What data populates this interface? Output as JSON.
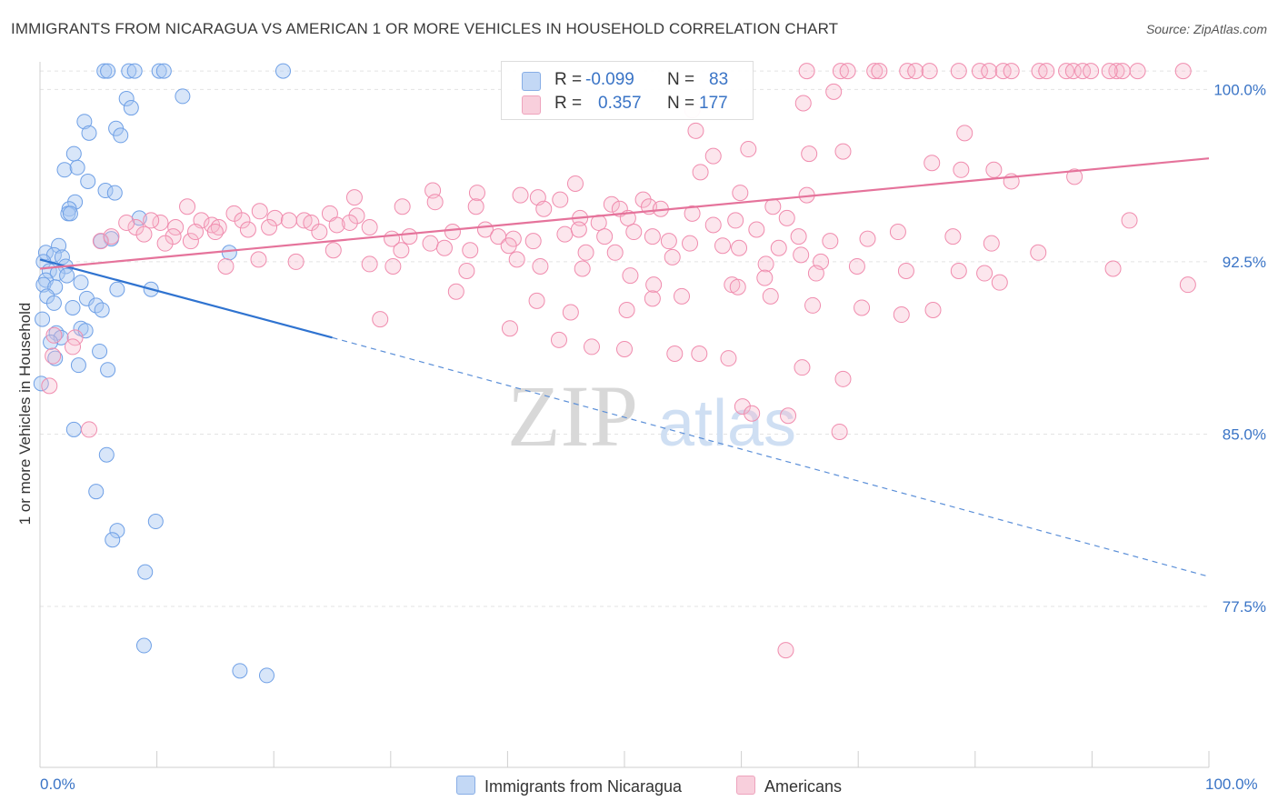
{
  "header": {
    "title": "IMMIGRANTS FROM NICARAGUA VS AMERICAN 1 OR MORE VEHICLES IN HOUSEHOLD CORRELATION CHART",
    "source": "Source: ZipAtlas.com"
  },
  "watermark": {
    "zip": "ZIP",
    "atlas": "atlas"
  },
  "legend": {
    "rows": [
      {
        "r_label": "R =",
        "r_value": "-0.099",
        "n_label": "N =",
        "n_value": "83",
        "color": "#a9c8f2"
      },
      {
        "r_label": "R =",
        "r_value": "0.357",
        "n_label": "N =",
        "n_value": "177",
        "color": "#f5b8cc"
      }
    ]
  },
  "bottom_legend": {
    "items": [
      {
        "label": "Immigrants from Nicaragua",
        "color": "#a9c8f2"
      },
      {
        "label": "Americans",
        "color": "#f5b8cc"
      }
    ]
  },
  "chart_data": {
    "type": "scatter",
    "title": "IMMIGRANTS FROM NICARAGUA VS AMERICAN 1 OR MORE VEHICLES IN HOUSEHOLD CORRELATION CHART",
    "xlabel": "",
    "ylabel": "1 or more Vehicles in Household",
    "xlim": [
      0,
      100
    ],
    "ylim": [
      70.5,
      101.2
    ],
    "x_tick_labels": [
      "0.0%",
      "100.0%"
    ],
    "y_ticks": [
      77.5,
      85.0,
      92.5,
      100.0
    ],
    "y_tick_labels": [
      "77.5%",
      "85.0%",
      "92.5%",
      "100.0%"
    ],
    "grid": true,
    "legend_position": "top-center",
    "series": [
      {
        "name": "Immigrants from Nicaragua",
        "color": "#6fa0e6",
        "trend": {
          "x": [
            0,
            25
          ],
          "y": [
            92.6,
            89.2
          ],
          "dashed_to": [
            100,
            78.8
          ]
        },
        "points": [
          [
            5.5,
            100.8
          ],
          [
            5.8,
            100.8
          ],
          [
            7.6,
            100.8
          ],
          [
            8.1,
            100.8
          ],
          [
            10.2,
            100.8
          ],
          [
            10.6,
            100.8
          ],
          [
            20.8,
            100.8
          ],
          [
            12.2,
            99.7
          ],
          [
            7.4,
            99.6
          ],
          [
            7.8,
            99.2
          ],
          [
            3.8,
            98.6
          ],
          [
            6.5,
            98.3
          ],
          [
            4.2,
            98.1
          ],
          [
            6.9,
            98.0
          ],
          [
            2.9,
            97.2
          ],
          [
            2.1,
            96.5
          ],
          [
            3.2,
            96.6
          ],
          [
            4.1,
            96.0
          ],
          [
            5.6,
            95.6
          ],
          [
            6.4,
            95.5
          ],
          [
            3.0,
            95.1
          ],
          [
            2.5,
            94.8
          ],
          [
            2.4,
            94.6
          ],
          [
            2.6,
            94.6
          ],
          [
            8.5,
            94.4
          ],
          [
            6.1,
            93.5
          ],
          [
            5.2,
            93.4
          ],
          [
            1.6,
            93.2
          ],
          [
            0.5,
            92.9
          ],
          [
            1.2,
            92.8
          ],
          [
            1.9,
            92.7
          ],
          [
            16.2,
            92.9
          ],
          [
            0.3,
            92.5
          ],
          [
            2.2,
            92.3
          ],
          [
            0.8,
            92.1
          ],
          [
            1.5,
            92.0
          ],
          [
            2.3,
            91.9
          ],
          [
            0.5,
            91.7
          ],
          [
            0.3,
            91.5
          ],
          [
            3.5,
            91.6
          ],
          [
            1.3,
            91.4
          ],
          [
            6.6,
            91.3
          ],
          [
            9.5,
            91.3
          ],
          [
            0.6,
            91.0
          ],
          [
            4.0,
            90.9
          ],
          [
            1.2,
            90.7
          ],
          [
            4.8,
            90.6
          ],
          [
            5.3,
            90.4
          ],
          [
            2.8,
            90.5
          ],
          [
            0.2,
            90.0
          ],
          [
            3.5,
            89.6
          ],
          [
            3.9,
            89.5
          ],
          [
            1.4,
            89.4
          ],
          [
            1.8,
            89.2
          ],
          [
            0.9,
            89.0
          ],
          [
            5.1,
            88.6
          ],
          [
            1.3,
            88.3
          ],
          [
            3.3,
            88.0
          ],
          [
            5.8,
            87.8
          ],
          [
            0.1,
            87.2
          ],
          [
            2.9,
            85.2
          ],
          [
            5.7,
            84.1
          ],
          [
            4.8,
            82.5
          ],
          [
            9.9,
            81.2
          ],
          [
            6.6,
            80.8
          ],
          [
            6.2,
            80.4
          ],
          [
            9.0,
            79.0
          ],
          [
            8.9,
            75.8
          ],
          [
            17.1,
            74.7
          ],
          [
            19.4,
            74.5
          ]
        ]
      },
      {
        "name": "Americans",
        "color": "#f08cae",
        "trend": {
          "x": [
            0,
            100
          ],
          "y": [
            92.2,
            97.0
          ]
        },
        "points": [
          [
            65.6,
            100.8
          ],
          [
            68.5,
            100.8
          ],
          [
            69.1,
            100.8
          ],
          [
            71.4,
            100.8
          ],
          [
            71.8,
            100.8
          ],
          [
            74.2,
            100.8
          ],
          [
            74.9,
            100.8
          ],
          [
            76.1,
            100.8
          ],
          [
            78.6,
            100.8
          ],
          [
            80.4,
            100.8
          ],
          [
            81.2,
            100.8
          ],
          [
            82.4,
            100.8
          ],
          [
            83.1,
            100.8
          ],
          [
            85.5,
            100.8
          ],
          [
            86.1,
            100.8
          ],
          [
            87.8,
            100.8
          ],
          [
            88.4,
            100.8
          ],
          [
            89.2,
            100.8
          ],
          [
            89.9,
            100.8
          ],
          [
            92.1,
            100.8
          ],
          [
            92.6,
            100.8
          ],
          [
            93.9,
            100.8
          ],
          [
            97.8,
            100.8
          ],
          [
            91.5,
            100.8
          ],
          [
            67.9,
            99.9
          ],
          [
            55.8,
            99.1
          ],
          [
            65.3,
            99.4
          ],
          [
            56.1,
            98.2
          ],
          [
            79.1,
            98.1
          ],
          [
            60.6,
            97.4
          ],
          [
            57.6,
            97.1
          ],
          [
            65.8,
            97.2
          ],
          [
            68.7,
            97.3
          ],
          [
            76.3,
            96.8
          ],
          [
            78.8,
            96.5
          ],
          [
            81.6,
            96.5
          ],
          [
            56.5,
            96.4
          ],
          [
            88.5,
            96.2
          ],
          [
            83.1,
            96.0
          ],
          [
            45.8,
            95.9
          ],
          [
            33.6,
            95.6
          ],
          [
            37.4,
            95.5
          ],
          [
            26.9,
            95.3
          ],
          [
            41.1,
            95.4
          ],
          [
            44.5,
            95.2
          ],
          [
            51.6,
            95.2
          ],
          [
            48.9,
            95.0
          ],
          [
            52.1,
            94.9
          ],
          [
            59.9,
            95.5
          ],
          [
            65.6,
            95.4
          ],
          [
            49.6,
            94.8
          ],
          [
            53.1,
            94.8
          ],
          [
            55.8,
            94.6
          ],
          [
            62.7,
            94.9
          ],
          [
            59.5,
            94.3
          ],
          [
            63.9,
            94.4
          ],
          [
            27.1,
            94.5
          ],
          [
            26.5,
            94.2
          ],
          [
            22.6,
            94.3
          ],
          [
            24.8,
            94.6
          ],
          [
            31.0,
            94.9
          ],
          [
            33.8,
            95.1
          ],
          [
            37.3,
            94.9
          ],
          [
            42.6,
            95.3
          ],
          [
            43.1,
            94.8
          ],
          [
            46.2,
            94.4
          ],
          [
            47.8,
            94.2
          ],
          [
            50.3,
            94.4
          ],
          [
            18.8,
            94.7
          ],
          [
            20.1,
            94.4
          ],
          [
            13.8,
            94.3
          ],
          [
            14.7,
            94.1
          ],
          [
            15.3,
            94.0
          ],
          [
            16.6,
            94.6
          ],
          [
            17.3,
            94.3
          ],
          [
            21.3,
            94.3
          ],
          [
            23.2,
            94.2
          ],
          [
            11.6,
            94.0
          ],
          [
            12.6,
            94.9
          ],
          [
            10.3,
            94.2
          ],
          [
            9.5,
            94.3
          ],
          [
            8.2,
            94.0
          ],
          [
            7.4,
            94.2
          ],
          [
            8.9,
            93.7
          ],
          [
            11.4,
            93.6
          ],
          [
            10.7,
            93.3
          ],
          [
            12.9,
            93.4
          ],
          [
            13.3,
            93.8
          ],
          [
            15.0,
            93.8
          ],
          [
            17.8,
            93.9
          ],
          [
            19.6,
            94.0
          ],
          [
            23.9,
            93.8
          ],
          [
            25.4,
            94.1
          ],
          [
            28.2,
            94.0
          ],
          [
            30.1,
            93.5
          ],
          [
            31.6,
            93.6
          ],
          [
            33.4,
            93.3
          ],
          [
            35.3,
            93.8
          ],
          [
            38.1,
            93.9
          ],
          [
            39.2,
            93.6
          ],
          [
            40.5,
            93.5
          ],
          [
            42.2,
            93.4
          ],
          [
            44.9,
            93.7
          ],
          [
            46.1,
            93.9
          ],
          [
            48.3,
            93.6
          ],
          [
            50.8,
            93.8
          ],
          [
            52.4,
            93.6
          ],
          [
            53.8,
            93.4
          ],
          [
            55.6,
            93.3
          ],
          [
            57.6,
            94.1
          ],
          [
            59.8,
            93.1
          ],
          [
            61.3,
            93.9
          ],
          [
            64.9,
            93.6
          ],
          [
            67.6,
            93.4
          ],
          [
            70.8,
            93.5
          ],
          [
            73.4,
            93.8
          ],
          [
            78.1,
            93.6
          ],
          [
            81.4,
            93.3
          ],
          [
            85.4,
            92.9
          ],
          [
            93.2,
            94.3
          ],
          [
            63.2,
            93.1
          ],
          [
            65.1,
            92.8
          ],
          [
            66.8,
            92.5
          ],
          [
            62.1,
            92.4
          ],
          [
            58.4,
            93.2
          ],
          [
            54.1,
            92.7
          ],
          [
            49.2,
            92.9
          ],
          [
            46.7,
            92.9
          ],
          [
            40.1,
            93.2
          ],
          [
            36.8,
            93.0
          ],
          [
            34.6,
            93.1
          ],
          [
            30.9,
            93.0
          ],
          [
            28.2,
            92.4
          ],
          [
            25.1,
            93.0
          ],
          [
            21.9,
            92.5
          ],
          [
            18.7,
            92.6
          ],
          [
            15.9,
            92.3
          ],
          [
            36.5,
            92.1
          ],
          [
            30.2,
            92.3
          ],
          [
            42.8,
            92.3
          ],
          [
            46.4,
            92.2
          ],
          [
            40.8,
            92.6
          ],
          [
            50.5,
            91.9
          ],
          [
            52.5,
            91.5
          ],
          [
            59.2,
            91.5
          ],
          [
            62.0,
            91.8
          ],
          [
            66.4,
            92.0
          ],
          [
            69.9,
            92.3
          ],
          [
            74.1,
            92.1
          ],
          [
            78.6,
            92.1
          ],
          [
            80.8,
            92.0
          ],
          [
            82.1,
            91.6
          ],
          [
            91.8,
            92.2
          ],
          [
            98.2,
            91.5
          ],
          [
            35.6,
            91.2
          ],
          [
            42.5,
            90.8
          ],
          [
            45.4,
            90.3
          ],
          [
            50.2,
            90.4
          ],
          [
            52.4,
            90.9
          ],
          [
            54.9,
            91.0
          ],
          [
            59.7,
            91.4
          ],
          [
            62.5,
            91.0
          ],
          [
            66.1,
            90.6
          ],
          [
            70.3,
            90.5
          ],
          [
            73.7,
            90.2
          ],
          [
            76.4,
            90.4
          ],
          [
            29.1,
            90.0
          ],
          [
            40.2,
            89.6
          ],
          [
            44.4,
            89.1
          ],
          [
            47.2,
            88.8
          ],
          [
            50.0,
            88.7
          ],
          [
            54.3,
            88.5
          ],
          [
            56.4,
            88.5
          ],
          [
            58.9,
            88.3
          ],
          [
            65.2,
            87.9
          ],
          [
            68.7,
            87.4
          ],
          [
            60.1,
            86.2
          ],
          [
            60.9,
            85.9
          ],
          [
            64.0,
            85.8
          ],
          [
            68.4,
            85.1
          ],
          [
            63.8,
            75.6
          ],
          [
            3.0,
            89.2
          ],
          [
            1.2,
            89.3
          ],
          [
            2.8,
            88.8
          ],
          [
            1.1,
            88.4
          ],
          [
            0.8,
            87.1
          ],
          [
            4.2,
            85.2
          ],
          [
            5.2,
            93.4
          ],
          [
            6.1,
            93.6
          ]
        ]
      }
    ]
  }
}
